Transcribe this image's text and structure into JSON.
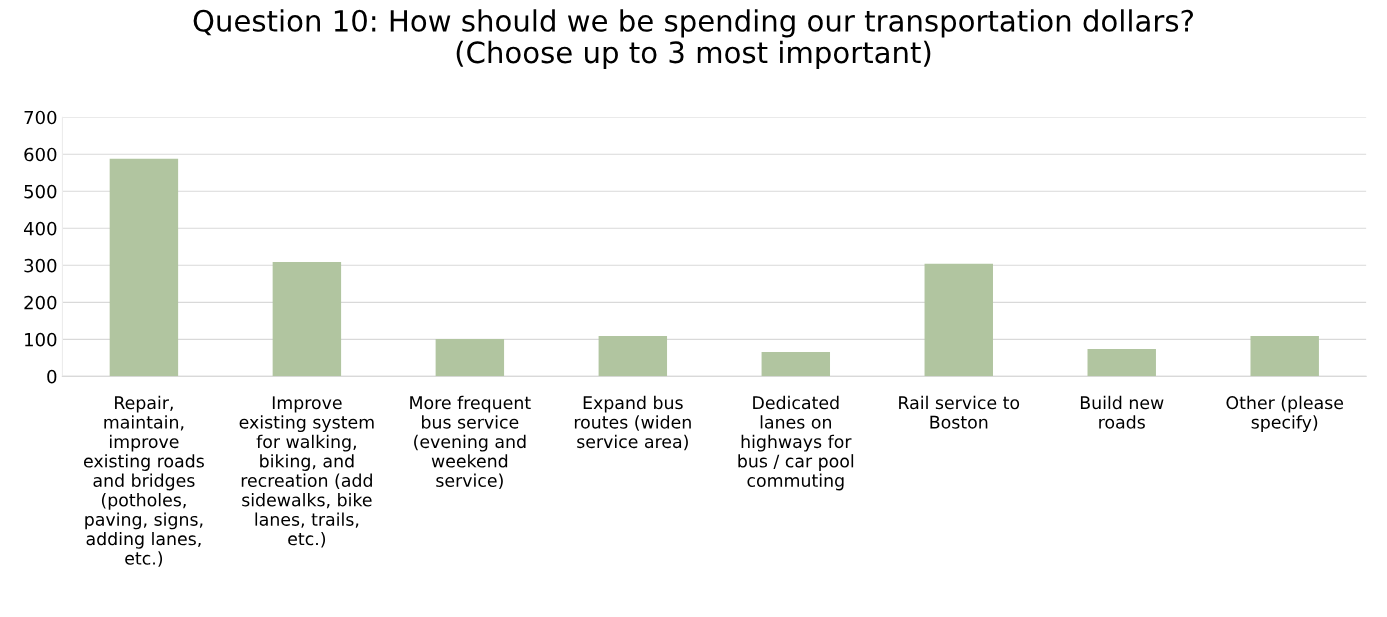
{
  "chart_data": {
    "type": "bar",
    "title": "Question 10: How should we be spending our transportation dollars?\n(Choose up to 3 most important)",
    "categories": [
      "Repair,\nmaintain,\nimprove\nexisting roads\nand bridges\n(potholes,\npaving, signs,\nadding lanes,\netc.)",
      "Improve\nexisting system\nfor walking,\nbiking, and\nrecreation (add\nsidewalks, bike\nlanes, trails,\netc.)",
      "More frequent\nbus service\n(evening and\nweekend\nservice)",
      "Expand bus\nroutes (widen\nservice area)",
      "Dedicated\nlanes on\nhighways for\nbus / car pool\ncommuting",
      "Rail service to\nBoston",
      "Build new\nroads",
      "Other (please\nspecify)"
    ],
    "values": [
      588,
      309,
      101,
      109,
      66,
      304,
      74,
      109
    ],
    "color": "#b1c5a0",
    "ylim": [
      0,
      700
    ],
    "yticks": [
      0,
      100,
      200,
      300,
      400,
      500,
      600,
      700
    ],
    "grid": "y"
  }
}
